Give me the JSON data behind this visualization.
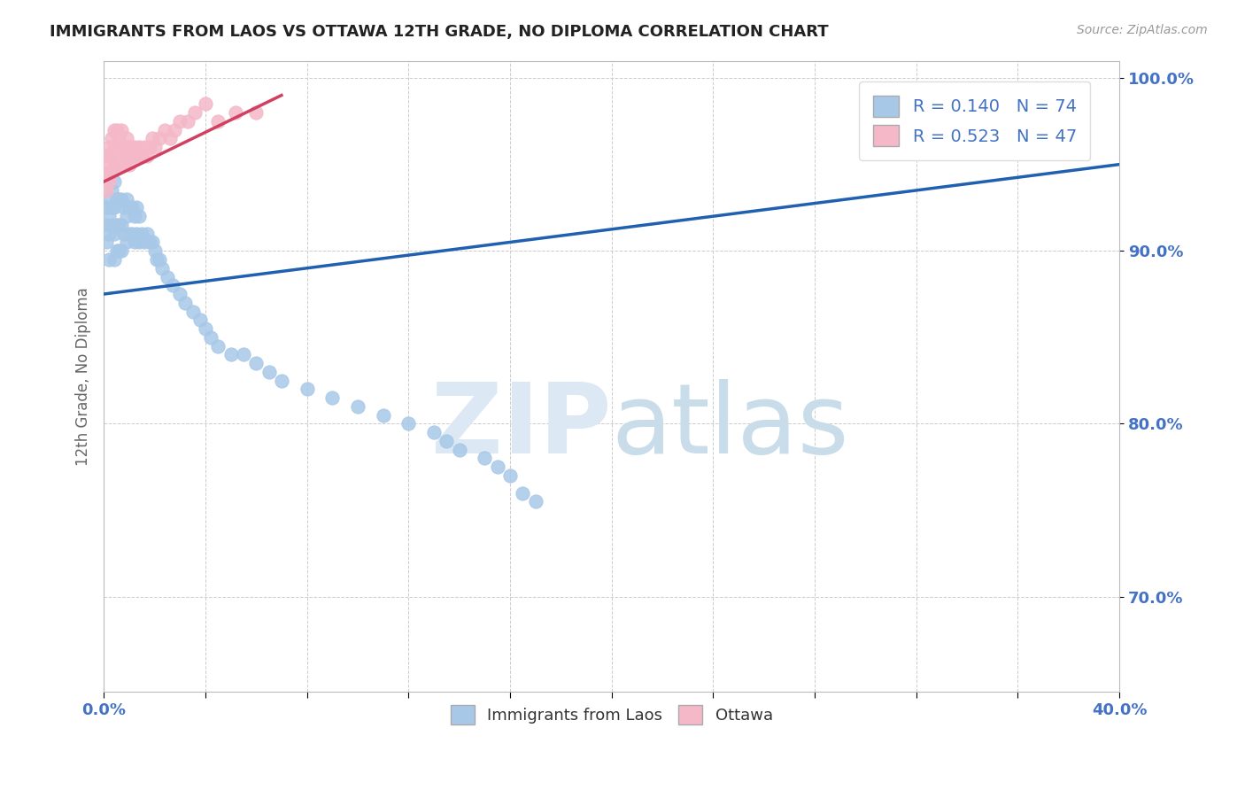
{
  "title": "IMMIGRANTS FROM LAOS VS OTTAWA 12TH GRADE, NO DIPLOMA CORRELATION CHART",
  "source_text": "Source: ZipAtlas.com",
  "ylabel": "12th Grade, No Diploma",
  "xlim": [
    0.0,
    0.4
  ],
  "ylim": [
    0.645,
    1.01
  ],
  "blue_R": 0.14,
  "blue_N": 74,
  "pink_R": 0.523,
  "pink_N": 47,
  "blue_color": "#a8c8e8",
  "pink_color": "#f4b8c8",
  "blue_line_color": "#2060b0",
  "pink_line_color": "#d04060",
  "legend_label_blue": "Immigrants from Laos",
  "legend_label_pink": "Ottawa",
  "watermark_color": "#dce8f0",
  "grid_color": "#cccccc",
  "bg_color": "#ffffff",
  "blue_scatter_x": [
    0.001,
    0.001,
    0.001,
    0.002,
    0.002,
    0.002,
    0.002,
    0.003,
    0.003,
    0.003,
    0.004,
    0.004,
    0.004,
    0.004,
    0.005,
    0.005,
    0.005,
    0.006,
    0.006,
    0.006,
    0.007,
    0.007,
    0.007,
    0.008,
    0.008,
    0.009,
    0.009,
    0.009,
    0.01,
    0.01,
    0.011,
    0.011,
    0.012,
    0.012,
    0.013,
    0.013,
    0.014,
    0.014,
    0.015,
    0.016,
    0.017,
    0.018,
    0.019,
    0.02,
    0.021,
    0.022,
    0.023,
    0.025,
    0.027,
    0.03,
    0.032,
    0.035,
    0.038,
    0.04,
    0.042,
    0.045,
    0.05,
    0.055,
    0.06,
    0.065,
    0.07,
    0.08,
    0.09,
    0.1,
    0.11,
    0.12,
    0.13,
    0.135,
    0.14,
    0.15,
    0.155,
    0.16,
    0.165,
    0.17
  ],
  "blue_scatter_y": [
    0.925,
    0.915,
    0.905,
    0.93,
    0.92,
    0.91,
    0.895,
    0.935,
    0.925,
    0.915,
    0.94,
    0.925,
    0.91,
    0.895,
    0.93,
    0.915,
    0.9,
    0.93,
    0.915,
    0.9,
    0.93,
    0.915,
    0.9,
    0.925,
    0.91,
    0.93,
    0.92,
    0.905,
    0.925,
    0.91,
    0.925,
    0.91,
    0.92,
    0.905,
    0.925,
    0.91,
    0.92,
    0.905,
    0.91,
    0.905,
    0.91,
    0.905,
    0.905,
    0.9,
    0.895,
    0.895,
    0.89,
    0.885,
    0.88,
    0.875,
    0.87,
    0.865,
    0.86,
    0.855,
    0.85,
    0.845,
    0.84,
    0.84,
    0.835,
    0.83,
    0.825,
    0.82,
    0.815,
    0.81,
    0.805,
    0.8,
    0.795,
    0.79,
    0.785,
    0.78,
    0.775,
    0.77,
    0.76,
    0.755
  ],
  "pink_scatter_x": [
    0.001,
    0.001,
    0.001,
    0.002,
    0.002,
    0.002,
    0.003,
    0.003,
    0.003,
    0.004,
    0.004,
    0.004,
    0.005,
    0.005,
    0.005,
    0.006,
    0.006,
    0.007,
    0.007,
    0.007,
    0.008,
    0.008,
    0.009,
    0.009,
    0.01,
    0.01,
    0.011,
    0.012,
    0.013,
    0.014,
    0.015,
    0.016,
    0.017,
    0.018,
    0.019,
    0.02,
    0.022,
    0.024,
    0.026,
    0.028,
    0.03,
    0.033,
    0.036,
    0.04,
    0.045,
    0.052,
    0.06
  ],
  "pink_scatter_y": [
    0.955,
    0.945,
    0.935,
    0.96,
    0.95,
    0.94,
    0.965,
    0.955,
    0.945,
    0.97,
    0.96,
    0.95,
    0.97,
    0.96,
    0.95,
    0.965,
    0.955,
    0.97,
    0.96,
    0.95,
    0.96,
    0.95,
    0.965,
    0.955,
    0.96,
    0.95,
    0.955,
    0.96,
    0.955,
    0.96,
    0.955,
    0.96,
    0.955,
    0.96,
    0.965,
    0.96,
    0.965,
    0.97,
    0.965,
    0.97,
    0.975,
    0.975,
    0.98,
    0.985,
    0.975,
    0.98,
    0.98
  ],
  "blue_trend_x0": 0.0,
  "blue_trend_x1": 0.4,
  "blue_trend_y0": 0.875,
  "blue_trend_y1": 0.95,
  "pink_trend_x0": 0.0,
  "pink_trend_x1": 0.07,
  "pink_trend_y0": 0.94,
  "pink_trend_y1": 0.99
}
